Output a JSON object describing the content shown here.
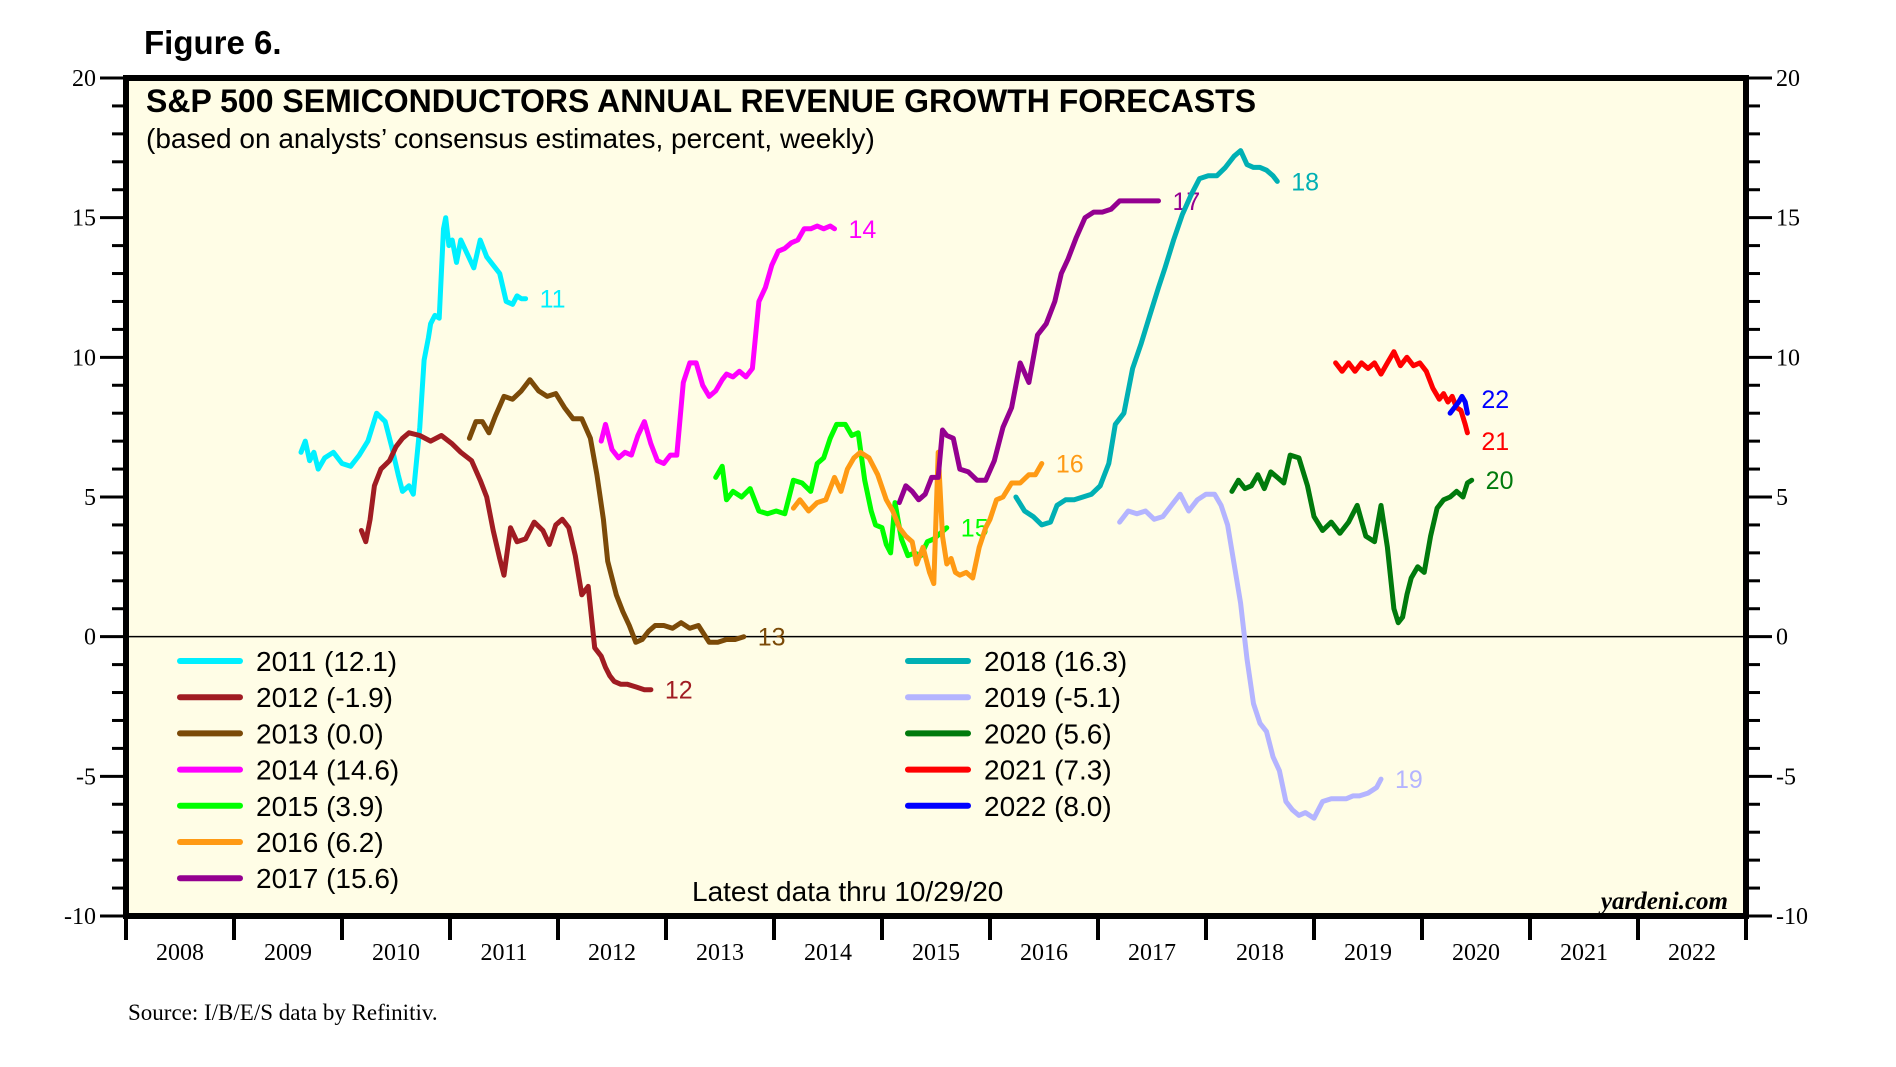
{
  "figure_label": "Figure 6.",
  "source": "Source: I/B/E/S data by Refinitiv.",
  "chart_data": {
    "type": "line",
    "title": "S&P 500 SEMICONDUCTORS ANNUAL REVENUE GROWTH FORECASTS",
    "subtitle": "(based on analysts’ consensus estimates, percent, weekly)",
    "xlabel": "",
    "ylabel": "",
    "xlim": [
      2008,
      2023
    ],
    "ylim": [
      -10,
      20
    ],
    "y_ticks": [
      20,
      15,
      10,
      5,
      0,
      -5,
      -10
    ],
    "y_tick_labels": [
      "20",
      "15",
      "10",
      "5",
      "0",
      "-5",
      "-10"
    ],
    "y_minor_step": 1,
    "x_tick_labels": [
      "2008",
      "2009",
      "2010",
      "2011",
      "2012",
      "2013",
      "2014",
      "2015",
      "2016",
      "2017",
      "2018",
      "2019",
      "2020",
      "2021",
      "2022"
    ],
    "grid": false,
    "zero_line": true,
    "background": "#fffde6",
    "note": "Latest data thru  10/29/20",
    "brand": "yardeni.com",
    "legend_placement": "bottom-left, two columns",
    "series": [
      {
        "name": "2011 (12.1)",
        "end_label": "11",
        "color": "#00f0ff",
        "x": [
          2009.62,
          2009.66,
          2009.7,
          2009.74,
          2009.78,
          2009.84,
          2009.92,
          2010.0,
          2010.08,
          2010.16,
          2010.24,
          2010.32,
          2010.4,
          2010.46,
          2010.52,
          2010.56,
          2010.62,
          2010.66,
          2010.72,
          2010.76,
          2010.8,
          2010.82,
          2010.86,
          2010.9,
          2010.94,
          2010.96,
          2010.99,
          2011.02,
          2011.06,
          2011.1,
          2011.16,
          2011.22,
          2011.28,
          2011.34,
          2011.4,
          2011.46,
          2011.52,
          2011.58,
          2011.62,
          2011.66,
          2011.7
        ],
        "y": [
          6.6,
          7.0,
          6.3,
          6.6,
          6.0,
          6.4,
          6.6,
          6.2,
          6.1,
          6.5,
          7.0,
          8.0,
          7.7,
          6.8,
          5.8,
          5.2,
          5.4,
          5.1,
          7.5,
          9.9,
          10.7,
          11.2,
          11.5,
          11.4,
          14.6,
          15.0,
          14.0,
          14.2,
          13.4,
          14.2,
          13.7,
          13.2,
          14.2,
          13.6,
          13.3,
          13.0,
          12.0,
          11.9,
          12.2,
          12.1,
          12.1
        ]
      },
      {
        "name": "2012 (-1.9)",
        "end_label": "12",
        "color": "#a01c22",
        "x": [
          2010.18,
          2010.22,
          2010.26,
          2010.3,
          2010.36,
          2010.44,
          2010.5,
          2010.56,
          2010.62,
          2010.72,
          2010.82,
          2010.92,
          2011.02,
          2011.1,
          2011.2,
          2011.28,
          2011.34,
          2011.4,
          2011.46,
          2011.5,
          2011.56,
          2011.62,
          2011.7,
          2011.78,
          2011.86,
          2011.92,
          2011.98,
          2012.04,
          2012.1,
          2012.16,
          2012.22,
          2012.28,
          2012.34,
          2012.4,
          2012.44,
          2012.48,
          2012.52,
          2012.58,
          2012.64,
          2012.72,
          2012.8,
          2012.86
        ],
        "y": [
          3.8,
          3.4,
          4.2,
          5.4,
          6.0,
          6.3,
          6.8,
          7.1,
          7.3,
          7.2,
          7.0,
          7.2,
          6.9,
          6.6,
          6.3,
          5.6,
          5.0,
          3.8,
          2.8,
          2.2,
          3.9,
          3.4,
          3.5,
          4.1,
          3.8,
          3.3,
          4.0,
          4.2,
          3.9,
          2.9,
          1.5,
          1.8,
          -0.4,
          -0.7,
          -1.1,
          -1.4,
          -1.6,
          -1.7,
          -1.7,
          -1.8,
          -1.9,
          -1.9
        ]
      },
      {
        "name": "2013 (0.0)",
        "end_label": "13",
        "color": "#7b4a08",
        "x": [
          2011.18,
          2011.24,
          2011.3,
          2011.36,
          2011.42,
          2011.5,
          2011.58,
          2011.66,
          2011.74,
          2011.82,
          2011.9,
          2011.98,
          2012.06,
          2012.14,
          2012.22,
          2012.3,
          2012.36,
          2012.42,
          2012.46,
          2012.5,
          2012.54,
          2012.6,
          2012.66,
          2012.72,
          2012.78,
          2012.84,
          2012.9,
          2012.98,
          2013.06,
          2013.14,
          2013.22,
          2013.3,
          2013.4,
          2013.48,
          2013.56,
          2013.64,
          2013.72
        ],
        "y": [
          7.1,
          7.7,
          7.7,
          7.3,
          7.9,
          8.6,
          8.5,
          8.8,
          9.2,
          8.8,
          8.6,
          8.7,
          8.2,
          7.8,
          7.8,
          7.1,
          5.8,
          4.2,
          2.7,
          2.1,
          1.5,
          0.9,
          0.4,
          -0.2,
          -0.1,
          0.2,
          0.4,
          0.4,
          0.3,
          0.5,
          0.3,
          0.4,
          -0.2,
          -0.2,
          -0.1,
          -0.1,
          0.0
        ]
      },
      {
        "name": "2014 (14.6)",
        "end_label": "14",
        "color": "#ff00ff",
        "x": [
          2012.4,
          2012.44,
          2012.5,
          2012.56,
          2012.62,
          2012.68,
          2012.74,
          2012.8,
          2012.86,
          2012.92,
          2012.98,
          2013.04,
          2013.1,
          2013.16,
          2013.22,
          2013.28,
          2013.34,
          2013.4,
          2013.46,
          2013.52,
          2013.56,
          2013.62,
          2013.68,
          2013.74,
          2013.8,
          2013.86,
          2013.92,
          2013.98,
          2014.04,
          2014.1,
          2014.16,
          2014.22,
          2014.28,
          2014.34,
          2014.4,
          2014.46,
          2014.52,
          2014.56
        ],
        "y": [
          7.0,
          7.6,
          6.7,
          6.4,
          6.6,
          6.5,
          7.2,
          7.7,
          6.9,
          6.3,
          6.2,
          6.5,
          6.5,
          9.1,
          9.8,
          9.8,
          9.0,
          8.6,
          8.8,
          9.2,
          9.4,
          9.3,
          9.5,
          9.3,
          9.6,
          12.0,
          12.5,
          13.3,
          13.8,
          13.9,
          14.1,
          14.2,
          14.6,
          14.6,
          14.7,
          14.6,
          14.7,
          14.6
        ]
      },
      {
        "name": "2015 (3.9)",
        "end_label": "15",
        "color": "#00ff00",
        "x": [
          2013.46,
          2013.52,
          2013.56,
          2013.62,
          2013.7,
          2013.78,
          2013.86,
          2013.94,
          2014.02,
          2014.1,
          2014.18,
          2014.26,
          2014.34,
          2014.4,
          2014.46,
          2014.52,
          2014.58,
          2014.66,
          2014.72,
          2014.78,
          2014.84,
          2014.9,
          2014.94,
          2015.0,
          2015.04,
          2015.08,
          2015.12,
          2015.18,
          2015.24,
          2015.3,
          2015.36,
          2015.42,
          2015.48,
          2015.54,
          2015.6
        ],
        "y": [
          5.7,
          6.1,
          4.9,
          5.2,
          5.0,
          5.3,
          4.5,
          4.4,
          4.5,
          4.4,
          5.6,
          5.5,
          5.2,
          6.2,
          6.4,
          7.1,
          7.6,
          7.6,
          7.2,
          7.3,
          5.6,
          4.5,
          4.0,
          3.9,
          3.3,
          3.0,
          4.8,
          3.5,
          2.9,
          3.0,
          2.9,
          3.4,
          3.5,
          3.7,
          3.9
        ]
      },
      {
        "name": "2016 (6.2)",
        "end_label": "16",
        "color": "#ff9a14",
        "x": [
          2014.18,
          2014.24,
          2014.32,
          2014.4,
          2014.48,
          2014.56,
          2014.62,
          2014.68,
          2014.74,
          2014.8,
          2014.88,
          2014.96,
          2015.04,
          2015.1,
          2015.16,
          2015.22,
          2015.28,
          2015.32,
          2015.38,
          2015.44,
          2015.48,
          2015.52,
          2015.56,
          2015.6,
          2015.64,
          2015.68,
          2015.72,
          2015.78,
          2015.84,
          2015.9,
          2015.96,
          2016.0,
          2016.06,
          2016.12,
          2016.2,
          2016.28,
          2016.36,
          2016.42,
          2016.48
        ],
        "y": [
          4.6,
          4.9,
          4.5,
          4.8,
          4.9,
          5.7,
          5.2,
          6.0,
          6.4,
          6.6,
          6.4,
          5.8,
          4.9,
          4.5,
          3.9,
          3.6,
          3.4,
          2.6,
          3.2,
          2.3,
          1.9,
          6.6,
          3.6,
          2.6,
          2.8,
          2.3,
          2.2,
          2.3,
          2.1,
          3.2,
          3.9,
          4.2,
          4.9,
          5.0,
          5.5,
          5.5,
          5.8,
          5.8,
          6.2
        ]
      },
      {
        "name": "2017 (15.6)",
        "end_label": "17",
        "color": "#940090",
        "x": [
          2015.16,
          2015.22,
          2015.28,
          2015.34,
          2015.4,
          2015.46,
          2015.52,
          2015.56,
          2015.6,
          2015.66,
          2015.72,
          2015.8,
          2015.88,
          2015.96,
          2016.04,
          2016.12,
          2016.2,
          2016.28,
          2016.36,
          2016.44,
          2016.52,
          2016.6,
          2016.66,
          2016.72,
          2016.8,
          2016.88,
          2016.96,
          2017.04,
          2017.12,
          2017.2,
          2017.28,
          2017.36,
          2017.44,
          2017.5,
          2017.56
        ],
        "y": [
          4.8,
          5.4,
          5.2,
          4.9,
          5.1,
          5.7,
          5.7,
          7.4,
          7.2,
          7.1,
          6.0,
          5.9,
          5.6,
          5.6,
          6.3,
          7.5,
          8.2,
          9.8,
          9.1,
          10.8,
          11.2,
          12.0,
          13.0,
          13.5,
          14.3,
          15.0,
          15.2,
          15.2,
          15.3,
          15.6,
          15.6,
          15.6,
          15.6,
          15.6,
          15.6
        ]
      },
      {
        "name": "2018 (16.3)",
        "end_label": "18",
        "color": "#00b0b4",
        "x": [
          2016.24,
          2016.32,
          2016.4,
          2016.48,
          2016.56,
          2016.62,
          2016.7,
          2016.78,
          2016.86,
          2016.94,
          2017.02,
          2017.1,
          2017.16,
          2017.24,
          2017.32,
          2017.4,
          2017.48,
          2017.56,
          2017.62,
          2017.7,
          2017.78,
          2017.86,
          2017.94,
          2018.02,
          2018.1,
          2018.18,
          2018.26,
          2018.32,
          2018.38,
          2018.44,
          2018.5,
          2018.56,
          2018.62,
          2018.66
        ],
        "y": [
          5.0,
          4.5,
          4.3,
          4.0,
          4.1,
          4.7,
          4.9,
          4.9,
          5.0,
          5.1,
          5.4,
          6.2,
          7.6,
          8.0,
          9.6,
          10.5,
          11.5,
          12.5,
          13.2,
          14.2,
          15.1,
          15.8,
          16.4,
          16.5,
          16.5,
          16.8,
          17.2,
          17.4,
          16.9,
          16.8,
          16.8,
          16.7,
          16.5,
          16.3
        ]
      },
      {
        "name": "2019 (-5.1)",
        "end_label": "19",
        "color": "#b4b4ff",
        "x": [
          2017.2,
          2017.28,
          2017.36,
          2017.44,
          2017.52,
          2017.6,
          2017.68,
          2017.76,
          2017.84,
          2017.92,
          2018.0,
          2018.08,
          2018.14,
          2018.2,
          2018.26,
          2018.32,
          2018.38,
          2018.44,
          2018.5,
          2018.56,
          2018.62,
          2018.68,
          2018.74,
          2018.8,
          2018.86,
          2018.92,
          2019.0,
          2019.08,
          2019.16,
          2019.24,
          2019.3,
          2019.36,
          2019.42,
          2019.5,
          2019.58,
          2019.62
        ],
        "y": [
          4.1,
          4.5,
          4.4,
          4.5,
          4.2,
          4.3,
          4.7,
          5.1,
          4.5,
          4.9,
          5.1,
          5.1,
          4.7,
          4.0,
          2.6,
          1.2,
          -0.8,
          -2.4,
          -3.1,
          -3.4,
          -4.3,
          -4.8,
          -5.9,
          -6.2,
          -6.4,
          -6.3,
          -6.5,
          -5.9,
          -5.8,
          -5.8,
          -5.8,
          -5.7,
          -5.7,
          -5.6,
          -5.4,
          -5.1
        ]
      },
      {
        "name": "2020 (5.6)",
        "end_label": "20",
        "color": "#007a0c",
        "x": [
          2018.24,
          2018.3,
          2018.36,
          2018.42,
          2018.48,
          2018.54,
          2018.6,
          2018.66,
          2018.72,
          2018.78,
          2018.86,
          2018.94,
          2019.0,
          2019.08,
          2019.16,
          2019.24,
          2019.32,
          2019.4,
          2019.48,
          2019.56,
          2019.62,
          2019.68,
          2019.74,
          2019.78,
          2019.82,
          2019.86,
          2019.9,
          2019.96,
          2020.02,
          2020.08,
          2020.14,
          2020.2,
          2020.26,
          2020.32,
          2020.38,
          2020.42,
          2020.46
        ],
        "y": [
          5.2,
          5.6,
          5.3,
          5.4,
          5.8,
          5.3,
          5.9,
          5.7,
          5.5,
          6.5,
          6.4,
          5.4,
          4.3,
          3.8,
          4.1,
          3.7,
          4.1,
          4.7,
          3.6,
          3.4,
          4.7,
          3.2,
          1.0,
          0.5,
          0.7,
          1.5,
          2.1,
          2.5,
          2.3,
          3.6,
          4.6,
          4.9,
          5.0,
          5.2,
          5.0,
          5.5,
          5.6
        ]
      },
      {
        "name": "2021 (7.3)",
        "end_label": "21",
        "color": "#ff0000",
        "x": [
          2019.2,
          2019.26,
          2019.32,
          2019.38,
          2019.44,
          2019.5,
          2019.56,
          2019.62,
          2019.68,
          2019.74,
          2019.8,
          2019.86,
          2019.92,
          2019.98,
          2020.04,
          2020.1,
          2020.16,
          2020.2,
          2020.24,
          2020.28,
          2020.32,
          2020.36,
          2020.4,
          2020.42
        ],
        "y": [
          9.8,
          9.5,
          9.8,
          9.5,
          9.8,
          9.6,
          9.8,
          9.4,
          9.8,
          10.2,
          9.7,
          10.0,
          9.7,
          9.8,
          9.5,
          8.9,
          8.5,
          8.7,
          8.4,
          8.6,
          8.2,
          8.1,
          7.6,
          7.3
        ]
      },
      {
        "name": "2022 (8.0)",
        "end_label": "22",
        "color": "#0000ff",
        "x": [
          2020.26,
          2020.3,
          2020.34,
          2020.37,
          2020.4,
          2020.42
        ],
        "y": [
          8.0,
          8.2,
          8.4,
          8.6,
          8.4,
          8.0
        ]
      }
    ]
  }
}
